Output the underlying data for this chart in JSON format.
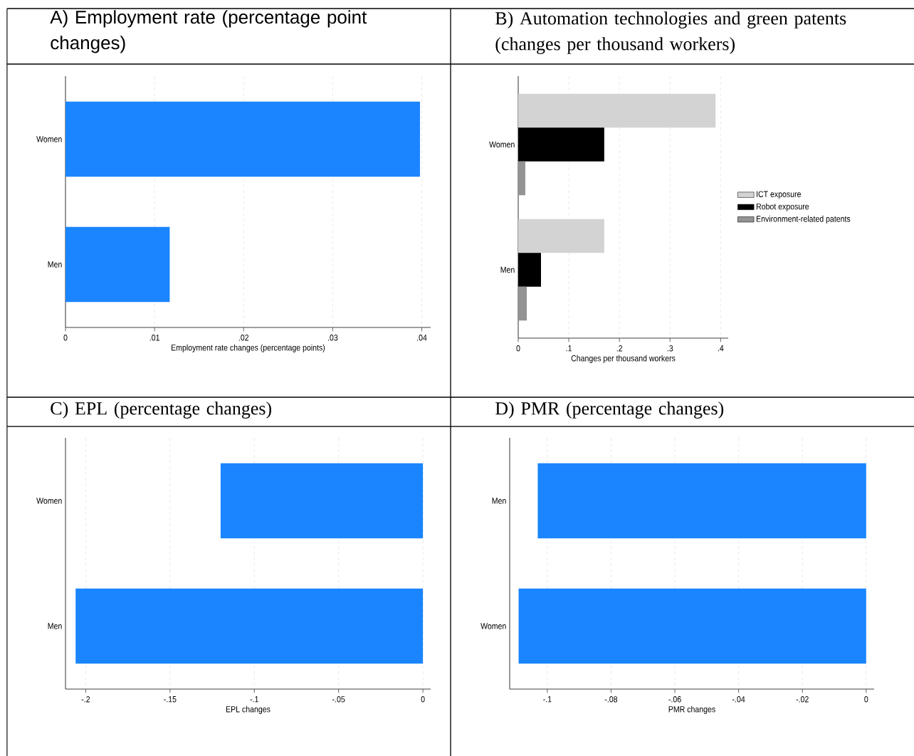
{
  "chart_data": [
    {
      "type": "bar",
      "orientation": "horizontal",
      "title": "A) Employment rate (percentage point changes)",
      "xlabel": "Employment rate changes (percentage points)",
      "categories": [
        "Women",
        "Men"
      ],
      "values": [
        0.0398,
        0.0117
      ],
      "color": "#1a85ff",
      "xlim": [
        0,
        0.041
      ],
      "xticks": [
        0,
        {
          "value": 0.01,
          "label": ".01"
        },
        {
          "value": 0.02,
          "label": ".02"
        },
        {
          "value": 0.03,
          "label": ".03"
        },
        {
          "value": 0.04,
          "label": ".04"
        }
      ],
      "grid": "x"
    },
    {
      "type": "bar",
      "orientation": "horizontal",
      "title": "B) Automation technologies and green patents (changes per thousand workers)",
      "xlabel": "Changes per thousand workers",
      "categories": [
        "Women",
        "Men"
      ],
      "series": [
        {
          "name": "ICT exposure",
          "color": "#d3d3d3",
          "values": [
            0.39,
            0.17
          ]
        },
        {
          "name": "Robot exposure",
          "color": "#000000",
          "values": [
            0.17,
            0.045
          ]
        },
        {
          "name": "Environment-related patents",
          "color": "#939393",
          "values": [
            0.014,
            0.017
          ]
        }
      ],
      "xlim": [
        0,
        0.415
      ],
      "xticks": [
        0,
        {
          "value": 0.1,
          "label": ".1"
        },
        {
          "value": 0.2,
          "label": ".2"
        },
        {
          "value": 0.3,
          "label": ".3"
        },
        {
          "value": 0.4,
          "label": ".4"
        }
      ],
      "grid": "x",
      "legend": "right"
    },
    {
      "type": "bar",
      "orientation": "horizontal",
      "title": "C) EPL (percentage changes)",
      "xlabel": "EPL changes",
      "categories": [
        "Women",
        "Men"
      ],
      "values": [
        -0.12,
        -0.206
      ],
      "color": "#1a85ff",
      "xlim": [
        -0.212,
        0.0046
      ],
      "xticks": [
        {
          "value": -0.2,
          "label": "-.2"
        },
        {
          "value": -0.15,
          "label": "-.15"
        },
        {
          "value": -0.1,
          "label": "-.1"
        },
        {
          "value": -0.05,
          "label": "-.05"
        },
        0
      ],
      "grid": "x"
    },
    {
      "type": "bar",
      "orientation": "horizontal",
      "title": "D) PMR (percentage changes)",
      "xlabel": "PMR changes",
      "categories": [
        "Men",
        "Women"
      ],
      "values": [
        -0.103,
        -0.109
      ],
      "color": "#1a85ff",
      "xlim": [
        -0.1118,
        0.0025
      ],
      "xticks": [
        {
          "value": -0.1,
          "label": "-.1"
        },
        {
          "value": -0.08,
          "label": "-.08"
        },
        {
          "value": -0.06,
          "label": "-.06"
        },
        {
          "value": -0.04,
          "label": "-.04"
        },
        {
          "value": -0.02,
          "label": "-.02"
        },
        0
      ],
      "grid": "x"
    }
  ]
}
